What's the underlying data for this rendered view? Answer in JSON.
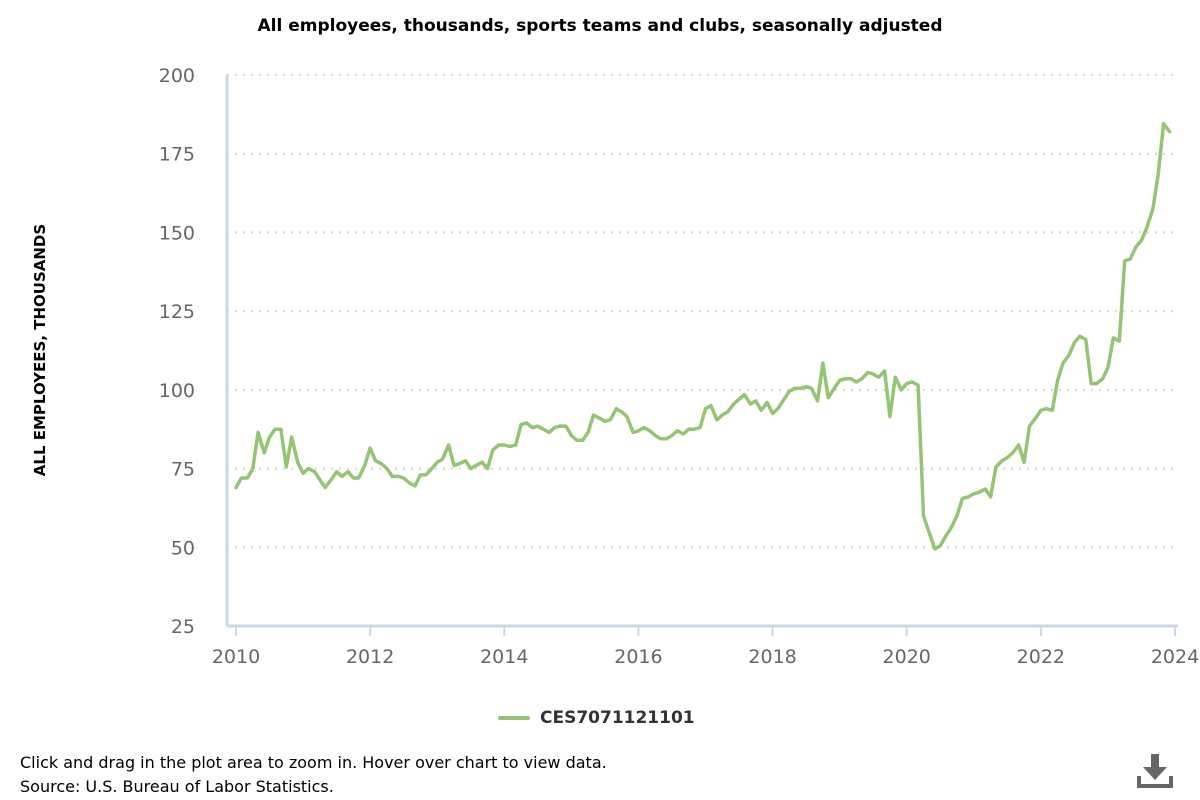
{
  "chart_data": {
    "type": "line",
    "title": "All employees, thousands, sports teams and clubs, seasonally adjusted",
    "ylabel": "ALL EMPLOYEES, THOUSANDS",
    "xlabel": "",
    "ylim": [
      25,
      200
    ],
    "xlim": [
      2009.9,
      2024.15
    ],
    "yticks": [
      25,
      50,
      75,
      100,
      125,
      150,
      175,
      200
    ],
    "xticks": [
      2010,
      2012,
      2014,
      2016,
      2018,
      2020,
      2022,
      2024
    ],
    "grid": "horizontal dotted",
    "legend_position": "bottom-center",
    "series": [
      {
        "name": "CES7071121101",
        "color": "#93c572",
        "points": [
          [
            2010.0,
            69
          ],
          [
            2010.08,
            72
          ],
          [
            2010.17,
            72
          ],
          [
            2010.25,
            75
          ],
          [
            2010.33,
            86.5
          ],
          [
            2010.42,
            80
          ],
          [
            2010.5,
            85
          ],
          [
            2010.58,
            87.5
          ],
          [
            2010.67,
            87.5
          ],
          [
            2010.75,
            75.5
          ],
          [
            2010.83,
            85
          ],
          [
            2010.92,
            77
          ],
          [
            2011.0,
            73.5
          ],
          [
            2011.08,
            75
          ],
          [
            2011.17,
            74
          ],
          [
            2011.25,
            71.5
          ],
          [
            2011.33,
            69
          ],
          [
            2011.42,
            71.5
          ],
          [
            2011.5,
            74
          ],
          [
            2011.58,
            72.5
          ],
          [
            2011.67,
            74
          ],
          [
            2011.75,
            72
          ],
          [
            2011.83,
            72
          ],
          [
            2011.92,
            76
          ],
          [
            2012.0,
            81.5
          ],
          [
            2012.08,
            77.5
          ],
          [
            2012.17,
            76.5
          ],
          [
            2012.25,
            75
          ],
          [
            2012.33,
            72.5
          ],
          [
            2012.42,
            72.5
          ],
          [
            2012.5,
            72
          ],
          [
            2012.58,
            70.5
          ],
          [
            2012.67,
            69.5
          ],
          [
            2012.75,
            73
          ],
          [
            2012.83,
            73
          ],
          [
            2012.92,
            75
          ],
          [
            2013.0,
            77
          ],
          [
            2013.08,
            78
          ],
          [
            2013.17,
            82.5
          ],
          [
            2013.25,
            76
          ],
          [
            2013.33,
            76.5
          ],
          [
            2013.42,
            77.5
          ],
          [
            2013.5,
            75
          ],
          [
            2013.58,
            76
          ],
          [
            2013.67,
            77
          ],
          [
            2013.75,
            75
          ],
          [
            2013.83,
            81
          ],
          [
            2013.92,
            82.5
          ],
          [
            2014.0,
            82.5
          ],
          [
            2014.08,
            82
          ],
          [
            2014.17,
            82.5
          ],
          [
            2014.25,
            89
          ],
          [
            2014.33,
            89.5
          ],
          [
            2014.42,
            88
          ],
          [
            2014.5,
            88.5
          ],
          [
            2014.58,
            87.5
          ],
          [
            2014.67,
            86.5
          ],
          [
            2014.75,
            88
          ],
          [
            2014.83,
            88.5
          ],
          [
            2014.92,
            88.5
          ],
          [
            2015.0,
            85.5
          ],
          [
            2015.08,
            84
          ],
          [
            2015.17,
            84
          ],
          [
            2015.25,
            86.5
          ],
          [
            2015.33,
            92
          ],
          [
            2015.42,
            91
          ],
          [
            2015.5,
            90
          ],
          [
            2015.58,
            90.5
          ],
          [
            2015.67,
            94
          ],
          [
            2015.75,
            93
          ],
          [
            2015.83,
            91.5
          ],
          [
            2015.92,
            86.5
          ],
          [
            2016.0,
            87
          ],
          [
            2016.08,
            88
          ],
          [
            2016.17,
            87
          ],
          [
            2016.25,
            85.5
          ],
          [
            2016.33,
            84.5
          ],
          [
            2016.42,
            84.5
          ],
          [
            2016.5,
            85.5
          ],
          [
            2016.58,
            87
          ],
          [
            2016.67,
            86
          ],
          [
            2016.75,
            87.5
          ],
          [
            2016.83,
            87.5
          ],
          [
            2016.92,
            88
          ],
          [
            2017.0,
            94
          ],
          [
            2017.08,
            95
          ],
          [
            2017.17,
            90.5
          ],
          [
            2017.25,
            92
          ],
          [
            2017.33,
            93
          ],
          [
            2017.42,
            95.5
          ],
          [
            2017.5,
            97
          ],
          [
            2017.58,
            98.5
          ],
          [
            2017.67,
            95.5
          ],
          [
            2017.75,
            96.5
          ],
          [
            2017.83,
            93.5
          ],
          [
            2017.92,
            96
          ],
          [
            2018.0,
            92.5
          ],
          [
            2018.08,
            94
          ],
          [
            2018.17,
            97
          ],
          [
            2018.25,
            99.5
          ],
          [
            2018.33,
            100.5
          ],
          [
            2018.42,
            100.5
          ],
          [
            2018.5,
            101
          ],
          [
            2018.58,
            100.5
          ],
          [
            2018.67,
            96.5
          ],
          [
            2018.75,
            108.5
          ],
          [
            2018.83,
            97.5
          ],
          [
            2018.92,
            100.5
          ],
          [
            2019.0,
            103
          ],
          [
            2019.08,
            103.5
          ],
          [
            2019.17,
            103.5
          ],
          [
            2019.25,
            102.5
          ],
          [
            2019.33,
            103.5
          ],
          [
            2019.42,
            105.5
          ],
          [
            2019.5,
            105
          ],
          [
            2019.58,
            104
          ],
          [
            2019.67,
            106
          ],
          [
            2019.75,
            91.5
          ],
          [
            2019.83,
            104
          ],
          [
            2019.92,
            100
          ],
          [
            2020.0,
            102
          ],
          [
            2020.08,
            102.5
          ],
          [
            2020.17,
            101.5
          ],
          [
            2020.25,
            60
          ],
          [
            2020.33,
            55
          ],
          [
            2020.42,
            49.5
          ],
          [
            2020.5,
            50.5
          ],
          [
            2020.58,
            53.5
          ],
          [
            2020.67,
            56.5
          ],
          [
            2020.75,
            60
          ],
          [
            2020.83,
            65.5
          ],
          [
            2020.92,
            66
          ],
          [
            2021.0,
            67
          ],
          [
            2021.08,
            67.5
          ],
          [
            2021.17,
            68.5
          ],
          [
            2021.25,
            66
          ],
          [
            2021.33,
            75.5
          ],
          [
            2021.42,
            77.5
          ],
          [
            2021.5,
            78.5
          ],
          [
            2021.58,
            80
          ],
          [
            2021.67,
            82.5
          ],
          [
            2021.75,
            77
          ],
          [
            2021.83,
            88.5
          ],
          [
            2021.92,
            91
          ],
          [
            2022.0,
            93.5
          ],
          [
            2022.08,
            94
          ],
          [
            2022.17,
            93.5
          ],
          [
            2022.25,
            103
          ],
          [
            2022.33,
            108.5
          ],
          [
            2022.42,
            111
          ],
          [
            2022.5,
            115
          ],
          [
            2022.58,
            117
          ],
          [
            2022.67,
            116
          ],
          [
            2022.75,
            102
          ],
          [
            2022.83,
            102
          ],
          [
            2022.92,
            103.5
          ],
          [
            2023.0,
            107
          ],
          [
            2023.08,
            116.5
          ],
          [
            2023.17,
            115.5
          ],
          [
            2023.25,
            141
          ],
          [
            2023.33,
            141.5
          ],
          [
            2023.42,
            145.5
          ],
          [
            2023.5,
            147.5
          ],
          [
            2023.58,
            151.5
          ],
          [
            2023.67,
            157.5
          ],
          [
            2023.75,
            168.5
          ],
          [
            2023.83,
            184.5
          ],
          [
            2023.92,
            182
          ]
        ]
      }
    ]
  },
  "footer": {
    "note": "Click and drag in the plot area to zoom in. Hover over chart to view data.",
    "source": "Source: U.S. Bureau of Labor Statistics."
  },
  "icons": {
    "download": "download-icon"
  }
}
